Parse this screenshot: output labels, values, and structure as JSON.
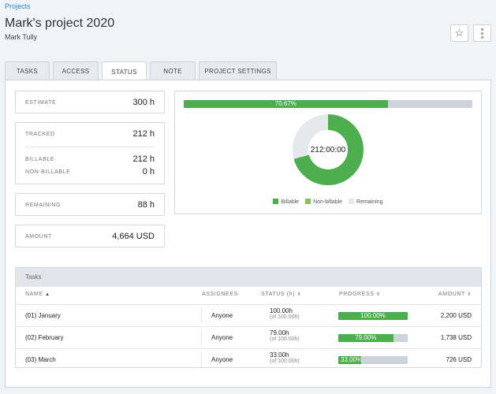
{
  "breadcrumb": "Projects",
  "project": {
    "title": "Mark's project 2020",
    "owner": "Mark Tully"
  },
  "header_icons": [
    "star-icon",
    "more-vertical-icon"
  ],
  "tabs": [
    {
      "label": "TASKS",
      "active": false
    },
    {
      "label": "ACCESS",
      "active": false
    },
    {
      "label": "STATUS",
      "active": true
    },
    {
      "label": "NOTE",
      "active": false
    },
    {
      "label": "PROJECT SETTINGS",
      "active": false
    }
  ],
  "stats": {
    "estimate": {
      "label": "ESTIMATE",
      "value": "300 h"
    },
    "tracked": {
      "label": "TRACKED",
      "value": "212 h"
    },
    "billable": {
      "label": "BILLABLE",
      "value": "212 h"
    },
    "non_billable": {
      "label": "NON-BILLABLE",
      "value": "0 h"
    },
    "remaining": {
      "label": "REMAINING",
      "value": "88 h"
    },
    "amount": {
      "label": "AMOUNT",
      "value": "4,664 USD"
    }
  },
  "summary_bar": {
    "label": "70.67%",
    "fraction": 0.7067
  },
  "donut": {
    "center_label": "212:00:00",
    "segments": [
      {
        "name": "Billable",
        "value": 212,
        "color": "#4cae4c"
      },
      {
        "name": "Non-billable",
        "value": 0,
        "color": "#8bc34a"
      },
      {
        "name": "Remaining",
        "value": 88,
        "color": "#e6e9ec"
      }
    ]
  },
  "legend": [
    {
      "label": "Billable",
      "color": "#4cae4c"
    },
    {
      "label": "Non-billable",
      "color": "#8bc34a"
    },
    {
      "label": "Remaining",
      "color": "#e6e9ec"
    }
  ],
  "tasks": {
    "heading": "Tasks",
    "columns": {
      "name": "NAME",
      "assignees": "ASSIGNEES",
      "status": "STATUS (h)",
      "progress": "PROGRESS",
      "amount": "AMOUNT"
    },
    "rows": [
      {
        "name": "(01) January",
        "assignees": "Anyone",
        "status": "100.00h",
        "status_sub": "(of 100.00h)",
        "progress_label": "100.00%",
        "progress": 1.0,
        "amount": "2,200 USD"
      },
      {
        "name": "(02) February",
        "assignees": "Anyone",
        "status": "79.00h",
        "status_sub": "(of 100.00h)",
        "progress_label": "79.00%",
        "progress": 0.79,
        "amount": "1,738 USD"
      },
      {
        "name": "(03) March",
        "assignees": "Anyone",
        "status": "33.00h",
        "status_sub": "(of 100.00h)",
        "progress_label": "33.00%",
        "progress": 0.33,
        "amount": "726 USD"
      }
    ]
  },
  "colors": {
    "accent": "#4cae4c",
    "link": "#2a86c8",
    "track": "#ccd3da"
  }
}
